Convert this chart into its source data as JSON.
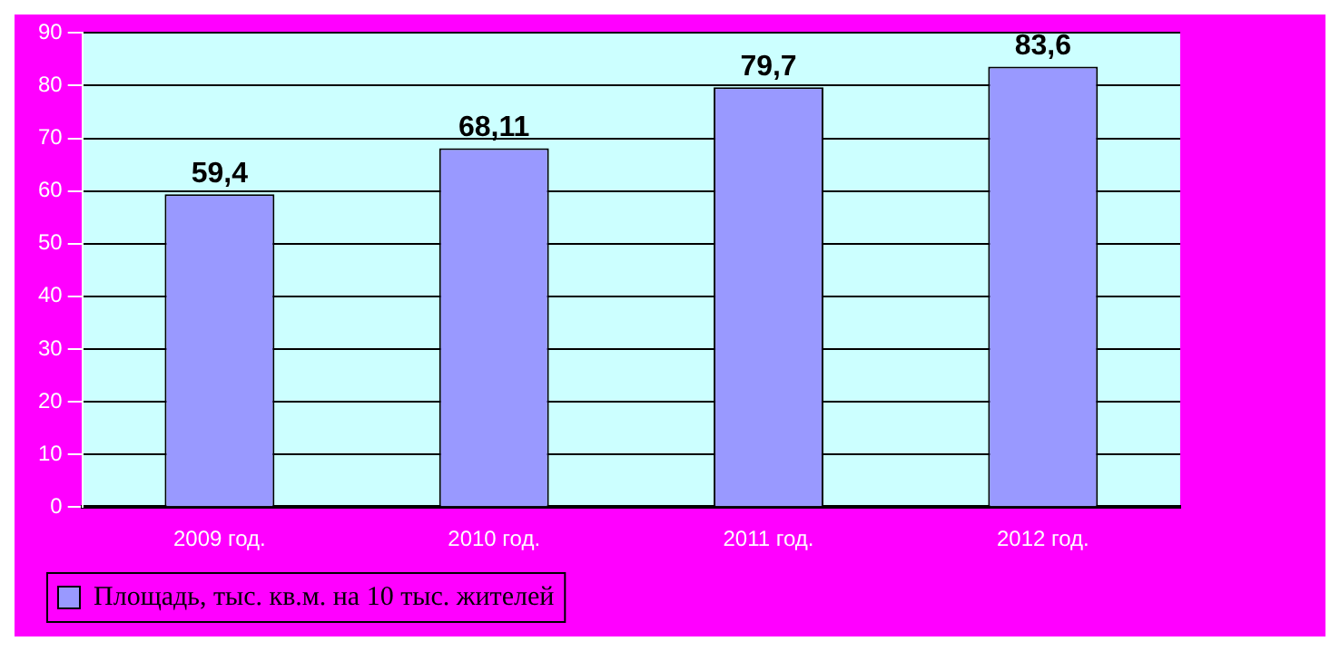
{
  "chart_data": {
    "type": "bar",
    "categories": [
      "2009 год.",
      "2010 год.",
      "2011 год.",
      "2012 год."
    ],
    "series": [
      {
        "name": "Площадь, тыс. кв.м. на 10 тыс. жителей",
        "color": "#9999ff",
        "values": [
          59.4,
          68.11,
          79.7,
          83.6
        ],
        "value_labels": [
          "59,4",
          "68,11",
          "79,7",
          "83,6"
        ]
      }
    ],
    "ylim": [
      0,
      90
    ],
    "yticks": [
      0,
      10,
      20,
      30,
      40,
      50,
      60,
      70,
      80,
      90
    ],
    "grid": "y",
    "legend": "bottom left"
  }
}
